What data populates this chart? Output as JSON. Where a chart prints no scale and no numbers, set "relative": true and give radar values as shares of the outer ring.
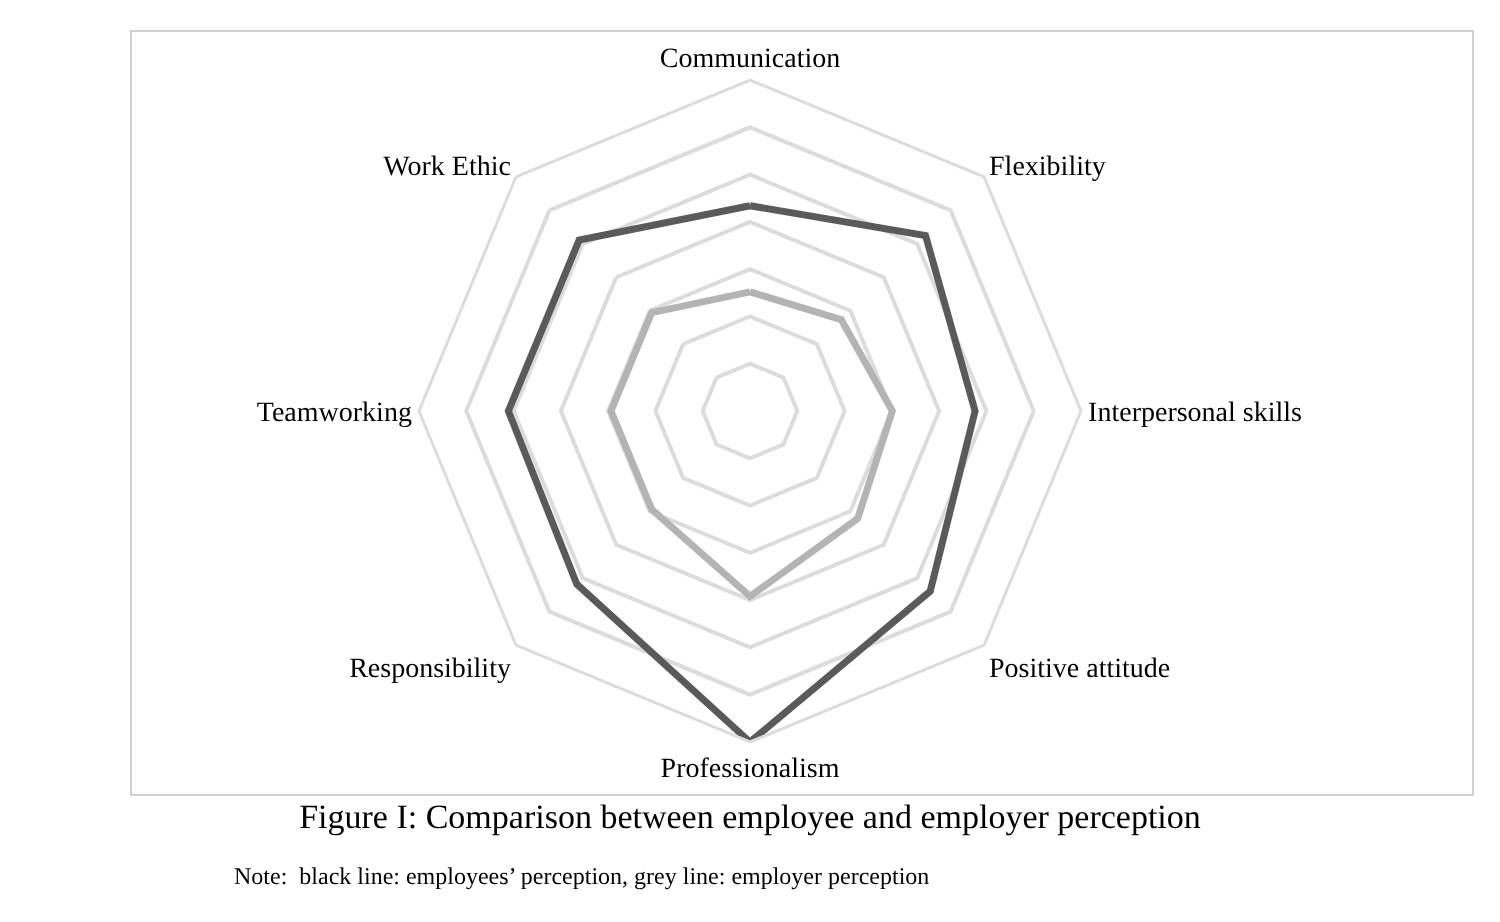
{
  "chart_data": {
    "type": "radar",
    "title": "Figure I: Comparison between employee and employer perception",
    "relative": true,
    "grid": true,
    "marker": "none",
    "line_style": "solid",
    "categories": [
      "Communication",
      "Flexibility",
      "Interpersonal skills",
      "Positive attitude",
      "Professionalism",
      "Responsibility",
      "Teamworking",
      "Work Ethic"
    ],
    "series": [
      {
        "color": "#5a5a5a",
        "values": [
          0.62,
          0.75,
          0.68,
          0.77,
          1.0,
          0.74,
          0.73,
          0.73
        ]
      },
      {
        "color": "#b4b4b4",
        "values": [
          0.36,
          0.39,
          0.43,
          0.46,
          0.56,
          0.42,
          0.42,
          0.42
        ]
      }
    ],
    "annotations": [
      "Note:  black line: employees’ perception, grey line: employer perception"
    ]
  }
}
